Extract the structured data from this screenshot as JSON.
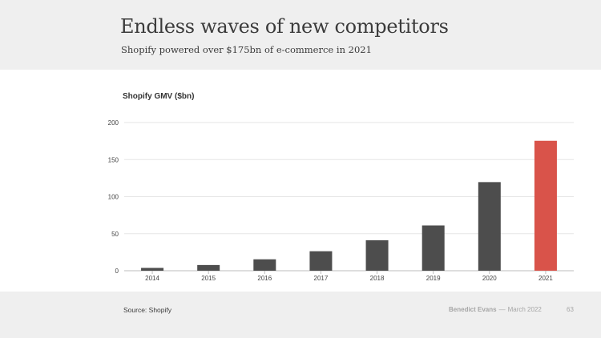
{
  "header": {
    "title": "Endless waves of new competitors",
    "subtitle": "Shopify powered over $175bn of e-commerce in 2021"
  },
  "chart_data": {
    "type": "bar",
    "title": "Shopify GMV ($bn)",
    "categories": [
      "2014",
      "2015",
      "2016",
      "2017",
      "2018",
      "2019",
      "2020",
      "2021"
    ],
    "values": [
      3.8,
      7.7,
      15.4,
      26.3,
      41.1,
      61.1,
      119.6,
      175.4
    ],
    "xlabel": "",
    "ylabel": "",
    "ylim": [
      0,
      200
    ],
    "yticks": [
      "0",
      "50",
      "100",
      "150",
      "200"
    ],
    "grid": true,
    "colors": {
      "default": "#4d4d4d",
      "highlight": "#d9534a"
    },
    "highlight_category": "2021"
  },
  "footer": {
    "source": "Source: Shopify",
    "author": "Benedict Evans",
    "separator": "—",
    "date": "March 2022",
    "page": "63"
  }
}
